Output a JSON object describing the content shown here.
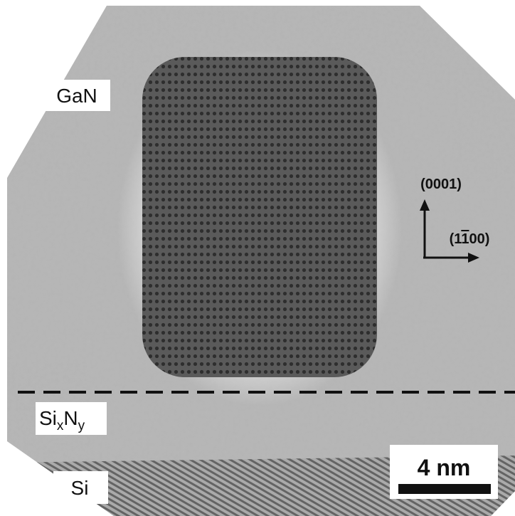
{
  "labels": {
    "top_layer": "GaN",
    "middle_layer": [
      "Si",
      "x",
      "N",
      "y"
    ],
    "substrate": "Si",
    "direction_vertical": "(0001)",
    "direction_horizontal": [
      "(1",
      "1",
      "00)"
    ],
    "scale_bar": "4 nm"
  }
}
